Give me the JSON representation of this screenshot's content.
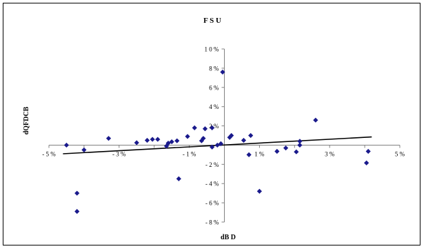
{
  "chart_data": {
    "type": "scatter",
    "title": "F S U",
    "xlabel": "dB D",
    "ylabel": "dQFDCB",
    "xlim": [
      -5,
      5
    ],
    "ylim": [
      -8,
      10
    ],
    "x_ticks": [
      {
        "value": -5,
        "label": "- 5 %"
      },
      {
        "value": -3,
        "label": "- 3 %"
      },
      {
        "value": -1,
        "label": "- 1 %"
      },
      {
        "value": 1,
        "label": "1 %"
      },
      {
        "value": 3,
        "label": "3 %"
      },
      {
        "value": 5,
        "label": "5 %"
      }
    ],
    "y_ticks": [
      {
        "value": 10,
        "label": "1 0 %"
      },
      {
        "value": 8,
        "label": "8 %"
      },
      {
        "value": 6,
        "label": "6 %"
      },
      {
        "value": 4,
        "label": "4 %"
      },
      {
        "value": 2,
        "label": "2 %"
      },
      {
        "value": -2,
        "label": "- 2 %"
      },
      {
        "value": -4,
        "label": "- 4 %"
      },
      {
        "value": -6,
        "label": "- 6 %"
      },
      {
        "value": -8,
        "label": "- 8 %"
      }
    ],
    "grid": false,
    "legend": "none",
    "point_color": "#1a1a8c",
    "trendline_color": "#000000",
    "trendline": {
      "x": [
        -4.6,
        4.2
      ],
      "y": [
        -0.9,
        0.85
      ]
    },
    "points": [
      {
        "x": -4.5,
        "y": 0.0
      },
      {
        "x": -4.2,
        "y": -5.0
      },
      {
        "x": -4.2,
        "y": -6.9
      },
      {
        "x": -4.0,
        "y": -0.5
      },
      {
        "x": -3.3,
        "y": 0.7
      },
      {
        "x": -2.5,
        "y": 0.25
      },
      {
        "x": -2.2,
        "y": 0.5
      },
      {
        "x": -2.05,
        "y": 0.6
      },
      {
        "x": -1.9,
        "y": 0.6
      },
      {
        "x": -1.65,
        "y": -0.1
      },
      {
        "x": -1.6,
        "y": 0.2
      },
      {
        "x": -1.5,
        "y": 0.35
      },
      {
        "x": -1.35,
        "y": 0.45
      },
      {
        "x": -1.3,
        "y": -3.5
      },
      {
        "x": -1.05,
        "y": 0.9
      },
      {
        "x": -0.85,
        "y": 1.8
      },
      {
        "x": -0.65,
        "y": 0.45
      },
      {
        "x": -0.6,
        "y": 0.7
      },
      {
        "x": -0.55,
        "y": 1.7
      },
      {
        "x": -0.35,
        "y": 1.8
      },
      {
        "x": -0.35,
        "y": -0.2
      },
      {
        "x": -0.2,
        "y": 0.0
      },
      {
        "x": -0.1,
        "y": 0.15
      },
      {
        "x": -0.05,
        "y": 7.6
      },
      {
        "x": 0.15,
        "y": 0.8
      },
      {
        "x": 0.2,
        "y": 1.0
      },
      {
        "x": 0.55,
        "y": 0.5
      },
      {
        "x": 0.7,
        "y": -1.0
      },
      {
        "x": 0.75,
        "y": 1.0
      },
      {
        "x": 1.0,
        "y": -4.8
      },
      {
        "x": 1.5,
        "y": -0.65
      },
      {
        "x": 1.75,
        "y": -0.3
      },
      {
        "x": 2.05,
        "y": -0.7
      },
      {
        "x": 2.15,
        "y": 0.0
      },
      {
        "x": 2.15,
        "y": 0.4
      },
      {
        "x": 2.6,
        "y": 2.6
      },
      {
        "x": 4.05,
        "y": -1.85
      },
      {
        "x": 4.1,
        "y": -0.65
      }
    ]
  }
}
